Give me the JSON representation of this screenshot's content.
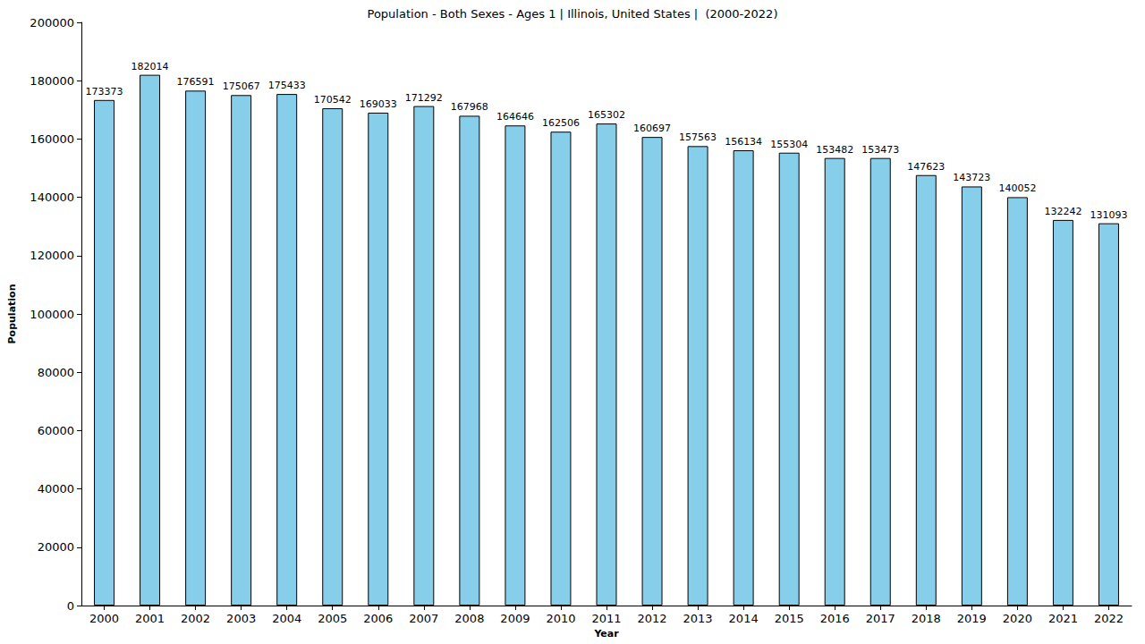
{
  "chart_data": {
    "type": "bar",
    "title": "Population - Both Sexes - Ages 1 | Illinois, United States |  (2000-2022)",
    "x_label": "Year",
    "y_label": "Population",
    "categories": [
      "2000",
      "2001",
      "2002",
      "2003",
      "2004",
      "2005",
      "2006",
      "2007",
      "2008",
      "2009",
      "2010",
      "2011",
      "2012",
      "2013",
      "2014",
      "2015",
      "2016",
      "2017",
      "2018",
      "2019",
      "2020",
      "2021",
      "2022"
    ],
    "values": [
      173373,
      182014,
      176591,
      175067,
      175433,
      170542,
      169033,
      171292,
      167968,
      164646,
      162506,
      165302,
      160697,
      157563,
      156134,
      155304,
      153482,
      153473,
      147623,
      143723,
      140052,
      132242,
      131093
    ],
    "color": "#87ceeb",
    "ylim": [
      0,
      200000
    ],
    "yticks": [
      0,
      20000,
      40000,
      60000,
      80000,
      100000,
      120000,
      140000,
      160000,
      180000,
      200000
    ],
    "grid": false,
    "data_labels": true
  }
}
